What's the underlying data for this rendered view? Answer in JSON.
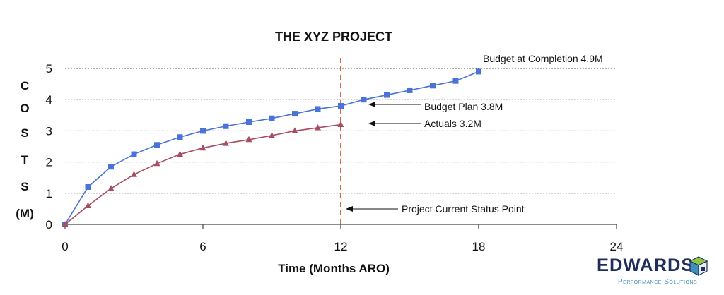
{
  "chart_data": {
    "type": "line",
    "title": "THE XYZ PROJECT",
    "xlabel": "Time (Months ARO)",
    "ylabel_letters": [
      "C",
      "O",
      "S",
      "T",
      "S",
      "(M)"
    ],
    "xlim": [
      0,
      24
    ],
    "ylim": [
      0,
      5
    ],
    "x_ticks": [
      "0",
      "6",
      "12",
      "18",
      "24"
    ],
    "y_ticks": [
      "0",
      "1",
      "2",
      "3",
      "4",
      "5"
    ],
    "grid": "horizontal dotted",
    "series": [
      {
        "name": "Budget",
        "color": "#4a72d9",
        "marker": "square",
        "x": [
          0,
          1,
          2,
          3,
          4,
          5,
          6,
          7,
          8,
          9,
          10,
          11,
          12,
          13,
          14,
          15,
          16,
          17,
          18
        ],
        "values": [
          0,
          1.2,
          1.85,
          2.25,
          2.55,
          2.8,
          3.0,
          3.15,
          3.28,
          3.4,
          3.55,
          3.7,
          3.8,
          4.0,
          4.15,
          4.3,
          4.45,
          4.6,
          4.9
        ]
      },
      {
        "name": "Actuals",
        "color": "#a64d62",
        "marker": "triangle",
        "x": [
          0,
          1,
          2,
          3,
          4,
          5,
          6,
          7,
          8,
          9,
          10,
          11,
          12
        ],
        "values": [
          0,
          0.6,
          1.15,
          1.6,
          1.95,
          2.25,
          2.45,
          2.6,
          2.72,
          2.85,
          3.0,
          3.1,
          3.2
        ]
      }
    ],
    "status_line": {
      "x": 12,
      "color": "#e0553a"
    },
    "annotations": [
      {
        "text": "Budget at Completion 4.9M",
        "arrow": false
      },
      {
        "text": "Budget Plan 3.8M",
        "arrow": true
      },
      {
        "text": "Actuals 3.2M",
        "arrow": true
      },
      {
        "text": "Project Current Status Point",
        "arrow": true
      }
    ]
  },
  "logo": {
    "name": "EDWARDS",
    "tagline": "Performance Solutions",
    "colors": {
      "primary": "#1f2d5c",
      "secondary": "#3f8fbf",
      "accent": "#8dc63f"
    }
  }
}
